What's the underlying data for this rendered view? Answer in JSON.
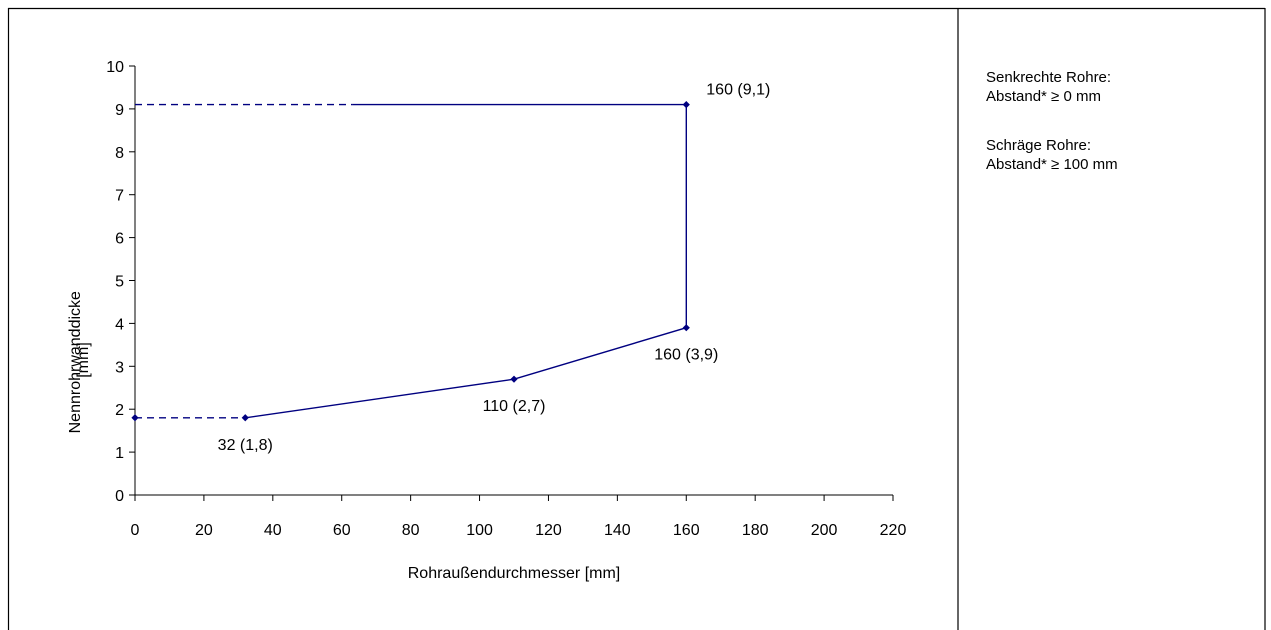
{
  "chart_data": {
    "type": "line",
    "xlabel": "Rohraußendurchmesser [mm]",
    "ylabel_lines": [
      "Nennrohrwanddicke",
      "[mm]"
    ],
    "xlim": [
      0,
      220
    ],
    "ylim": [
      0,
      10
    ],
    "x_ticks": [
      0,
      20,
      40,
      60,
      80,
      100,
      120,
      140,
      160,
      180,
      200,
      220
    ],
    "y_ticks": [
      0,
      1,
      2,
      3,
      4,
      5,
      6,
      7,
      8,
      9,
      10
    ],
    "line_color": "#000080",
    "series": [
      {
        "style": "solid",
        "points": [
          [
            32,
            1.8
          ],
          [
            110,
            2.7
          ],
          [
            160,
            3.9
          ],
          [
            160,
            9.1
          ],
          [
            63,
            9.1
          ]
        ]
      },
      {
        "style": "dashed",
        "points": [
          [
            0,
            1.8
          ],
          [
            32,
            1.8
          ]
        ]
      },
      {
        "style": "dashed",
        "points": [
          [
            0,
            9.1
          ],
          [
            63,
            9.1
          ]
        ]
      }
    ],
    "markers": [
      [
        0,
        1.8
      ],
      [
        32,
        1.8
      ],
      [
        110,
        2.7
      ],
      [
        160,
        3.9
      ],
      [
        160,
        9.1
      ]
    ],
    "annotations": [
      {
        "text": "32 (1,8)",
        "x": 32,
        "y": 1.8,
        "anchor": "below"
      },
      {
        "text": "110 (2,7)",
        "x": 110,
        "y": 2.7,
        "anchor": "below"
      },
      {
        "text": "160 (3,9)",
        "x": 160,
        "y": 3.9,
        "anchor": "below"
      },
      {
        "text": "160 (9,1)",
        "x": 160,
        "y": 9.1,
        "anchor": "right"
      }
    ],
    "grid": false
  },
  "notes": [
    {
      "lines": [
        "Senkrechte Rohre:",
        "Abstand* ≥ 0 mm"
      ]
    },
    {
      "lines": [
        "Schräge Rohre:",
        "Abstand* ≥ 100 mm"
      ]
    }
  ]
}
